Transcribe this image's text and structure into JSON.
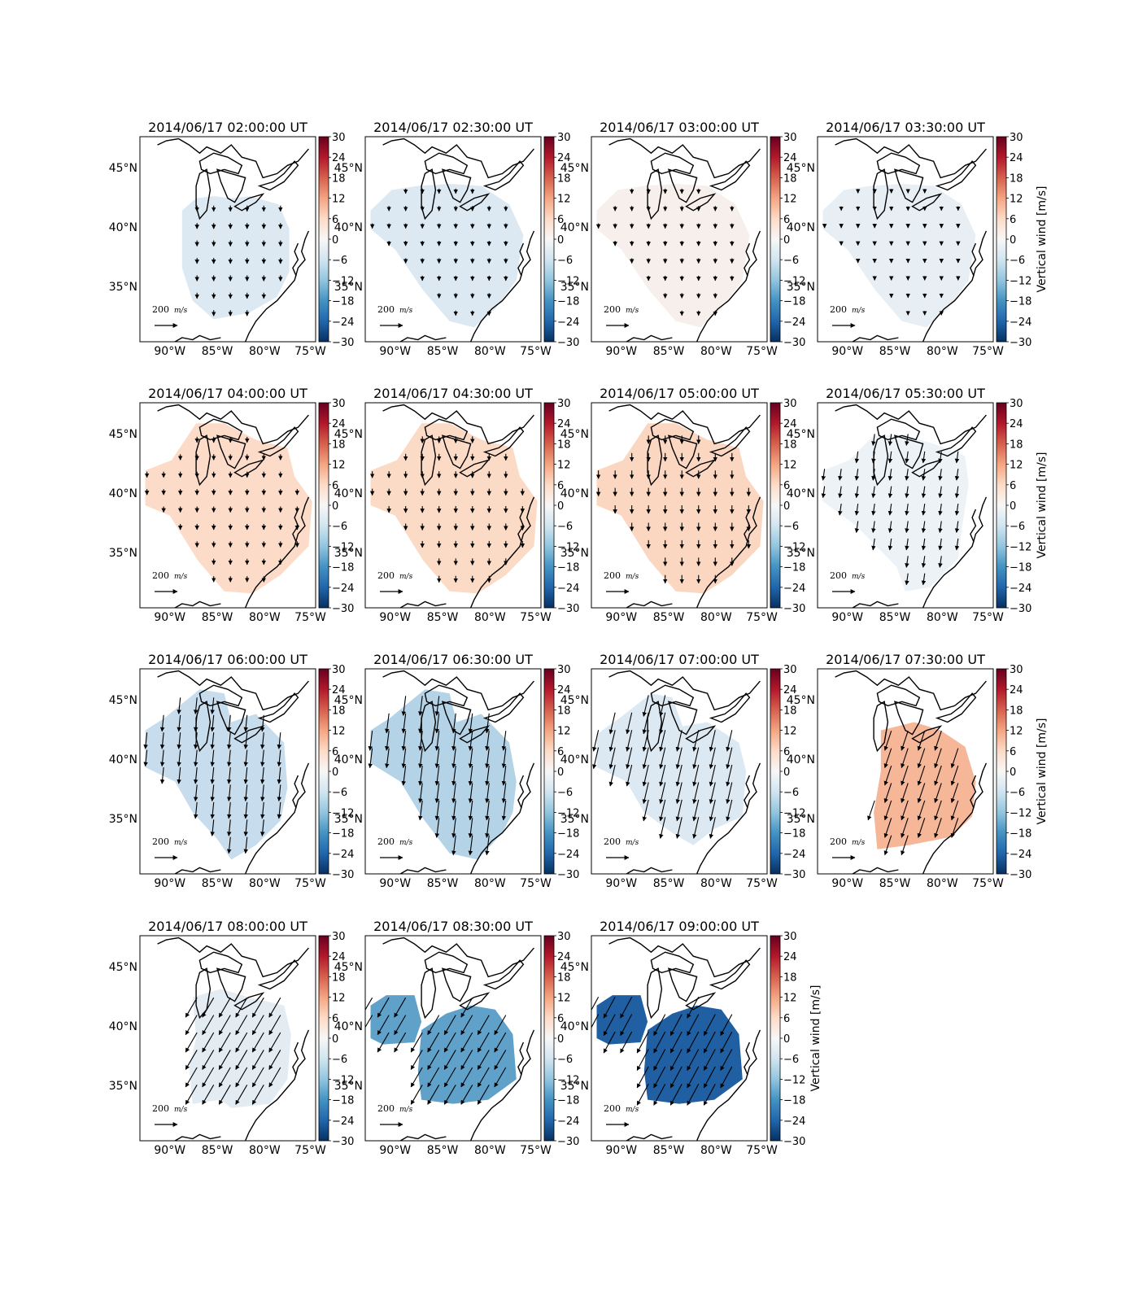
{
  "figure": {
    "colorbar_label": "Vertical wind [m/s]",
    "colorbar_ticks": [
      "30",
      "24",
      "18",
      "12",
      "6",
      "0",
      "−6",
      "−12",
      "−18",
      "−24",
      "−30"
    ],
    "colormap": [
      "#053061",
      "#2166ac",
      "#4393c3",
      "#92c5de",
      "#d1e5f0",
      "#f7f7f7",
      "#fddbc7",
      "#f4a582",
      "#d6604d",
      "#b2182b",
      "#67001f"
    ],
    "lon_ticks": [
      "90°W",
      "85°W",
      "80°W",
      "75°W"
    ],
    "lat_ticks": [
      "45°N",
      "40°N",
      "35°N"
    ],
    "scale_arrow_label": "200",
    "scale_arrow_unit": "m/s"
  },
  "panels": [
    {
      "title": "2014/06/17 02:00:00 UT",
      "fill": "#dce9f2"
    },
    {
      "title": "2014/06/17 02:30:00 UT",
      "fill": "#dce9f2"
    },
    {
      "title": "2014/06/17 03:00:00 UT",
      "fill": "#f6efeb"
    },
    {
      "title": "2014/06/17 03:30:00 UT",
      "fill": "#e7eef4"
    },
    {
      "title": "2014/06/17 04:00:00 UT",
      "fill": "#fcdcc9"
    },
    {
      "title": "2014/06/17 04:30:00 UT",
      "fill": "#fcdbc6"
    },
    {
      "title": "2014/06/17 05:00:00 UT",
      "fill": "#fbd7c2"
    },
    {
      "title": "2014/06/17 05:30:00 UT",
      "fill": "#edf2f6"
    },
    {
      "title": "2014/06/17 06:00:00 UT",
      "fill": "#c7dcec"
    },
    {
      "title": "2014/06/17 06:30:00 UT",
      "fill": "#b5d3e7"
    },
    {
      "title": "2014/06/17 07:00:00 UT",
      "fill": "#dde9f2"
    },
    {
      "title": "2014/06/17 07:30:00 UT",
      "fill": "#f6b799"
    },
    {
      "title": "2014/06/17 08:00:00 UT",
      "fill": "#e4ecf3"
    },
    {
      "title": "2014/06/17 08:30:00 UT",
      "fill": "#60a1ca"
    },
    {
      "title": "2014/06/17 09:00:00 UT",
      "fill": "#1f5fa2"
    }
  ]
}
